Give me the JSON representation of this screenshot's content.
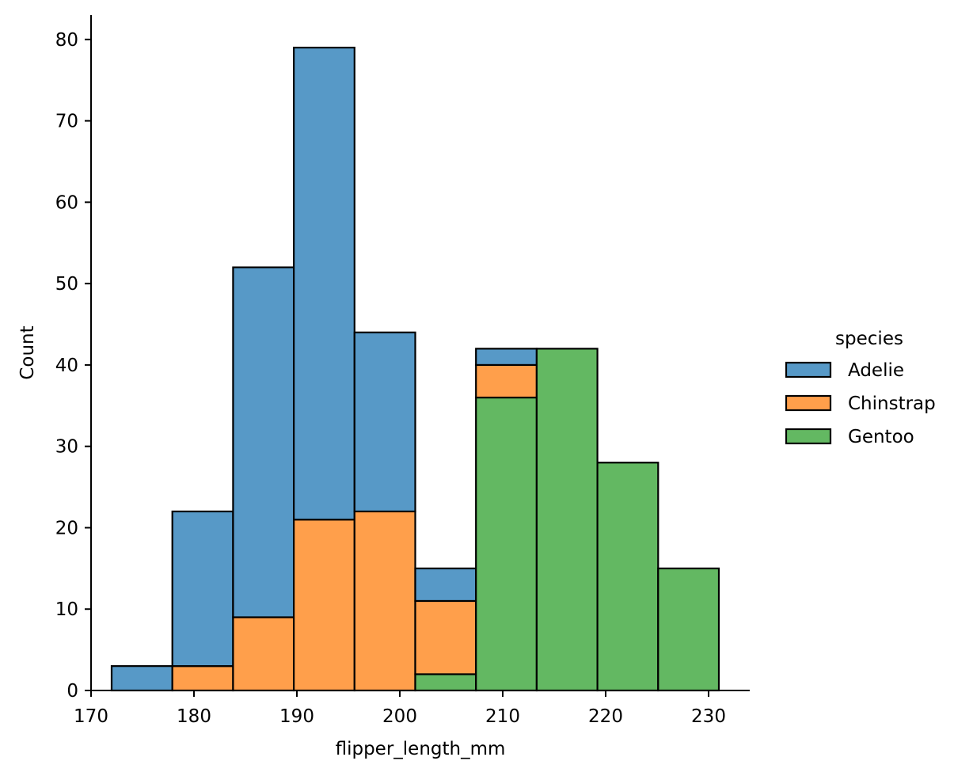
{
  "chart_data": {
    "type": "bar",
    "stacked": true,
    "xlabel": "flipper_length_mm",
    "ylabel": "Count",
    "xlim": [
      170,
      234
    ],
    "ylim": [
      0,
      83
    ],
    "xticks": [
      170,
      180,
      190,
      200,
      210,
      220,
      230
    ],
    "yticks": [
      0,
      10,
      20,
      30,
      40,
      50,
      60,
      70,
      80
    ],
    "grid": false,
    "legend_position": "right",
    "bin_edges": [
      172.0,
      177.9,
      183.8,
      189.7,
      195.6,
      201.5,
      207.4,
      213.3,
      219.2,
      225.1,
      231.0
    ],
    "series": [
      {
        "name": "Gentoo",
        "color": "#63b862",
        "values": [
          0,
          0,
          0,
          0,
          0,
          2,
          36,
          42,
          28,
          15
        ]
      },
      {
        "name": "Chinstrap",
        "color": "#ff9f4b",
        "values": [
          0,
          3,
          9,
          21,
          22,
          9,
          4,
          0,
          0,
          0
        ]
      },
      {
        "name": "Adelie",
        "color": "#5799c7",
        "values": [
          3,
          19,
          43,
          58,
          22,
          4,
          2,
          0,
          0,
          0
        ]
      }
    ],
    "legend": {
      "title": "species",
      "entries": [
        {
          "label": "Adelie",
          "color": "#5799c7"
        },
        {
          "label": "Chinstrap",
          "color": "#ff9f4b"
        },
        {
          "label": "Gentoo",
          "color": "#63b862"
        }
      ]
    }
  }
}
